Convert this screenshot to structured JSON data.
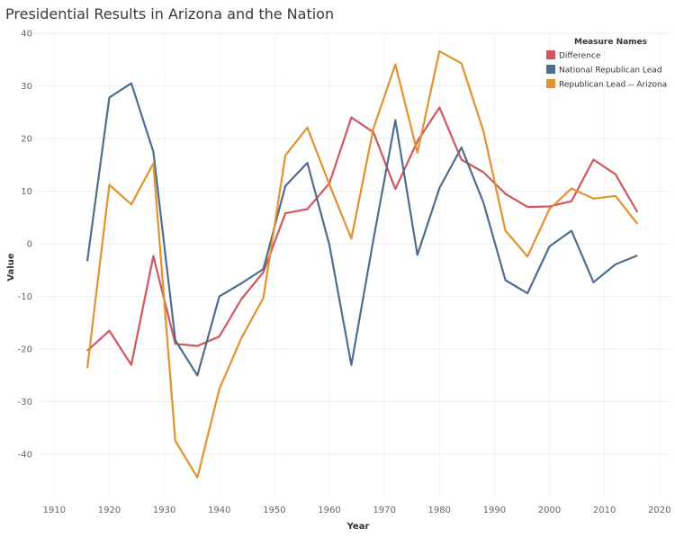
{
  "chart_data": {
    "type": "line",
    "title": "Presidential Results in Arizona and the Nation",
    "xlabel": "Year",
    "ylabel": "Value",
    "xlim": [
      1907,
      2022
    ],
    "ylim": [
      -48,
      40
    ],
    "xticks": [
      1910,
      1920,
      1930,
      1940,
      1950,
      1960,
      1970,
      1980,
      1990,
      2000,
      2010,
      2020
    ],
    "yticks": [
      40,
      30,
      20,
      10,
      0,
      -10,
      -20,
      -30,
      -40
    ],
    "grid": true,
    "legend": {
      "title": "Measure Names",
      "placement": "top-right"
    },
    "x": [
      1916,
      1920,
      1924,
      1928,
      1932,
      1936,
      1940,
      1944,
      1948,
      1952,
      1956,
      1960,
      1964,
      1968,
      1972,
      1976,
      1980,
      1984,
      1988,
      1992,
      1996,
      2000,
      2004,
      2008,
      2012,
      2016
    ],
    "series": [
      {
        "name": "Difference",
        "color": "#d1565e",
        "values": [
          -20.3,
          -16.5,
          -23,
          -2.3,
          -19,
          -19.4,
          -17.6,
          -10.5,
          -5.4,
          5.8,
          6.6,
          11.5,
          24,
          21.2,
          10.4,
          19.5,
          25.9,
          16,
          13.6,
          9.5,
          7,
          7.1,
          8.1,
          16,
          13.2,
          6
        ]
      },
      {
        "name": "National Republican Lead",
        "color": "#4e6d8f",
        "values": [
          -3.3,
          27.8,
          30.5,
          17.5,
          -18.3,
          -25,
          -10,
          -7.5,
          -4.8,
          11,
          15.4,
          -0.2,
          -23,
          0.8,
          23.5,
          -2.1,
          10.6,
          18.3,
          7.8,
          -6.9,
          -9.4,
          -0.5,
          2.5,
          -7.3,
          -3.9,
          -2.2
        ]
      },
      {
        "name": "Republican Lead -- Arizona",
        "color": "#e2922f",
        "values": [
          -23.6,
          11.2,
          7.5,
          15.3,
          -37.4,
          -44.4,
          -27.6,
          -17.9,
          -10.3,
          16.8,
          22.1,
          11.3,
          1,
          21.9,
          34.1,
          17.3,
          36.6,
          34.3,
          21.4,
          2.5,
          -2.4,
          6.6,
          10.5,
          8.6,
          9.1,
          3.8
        ]
      }
    ]
  }
}
